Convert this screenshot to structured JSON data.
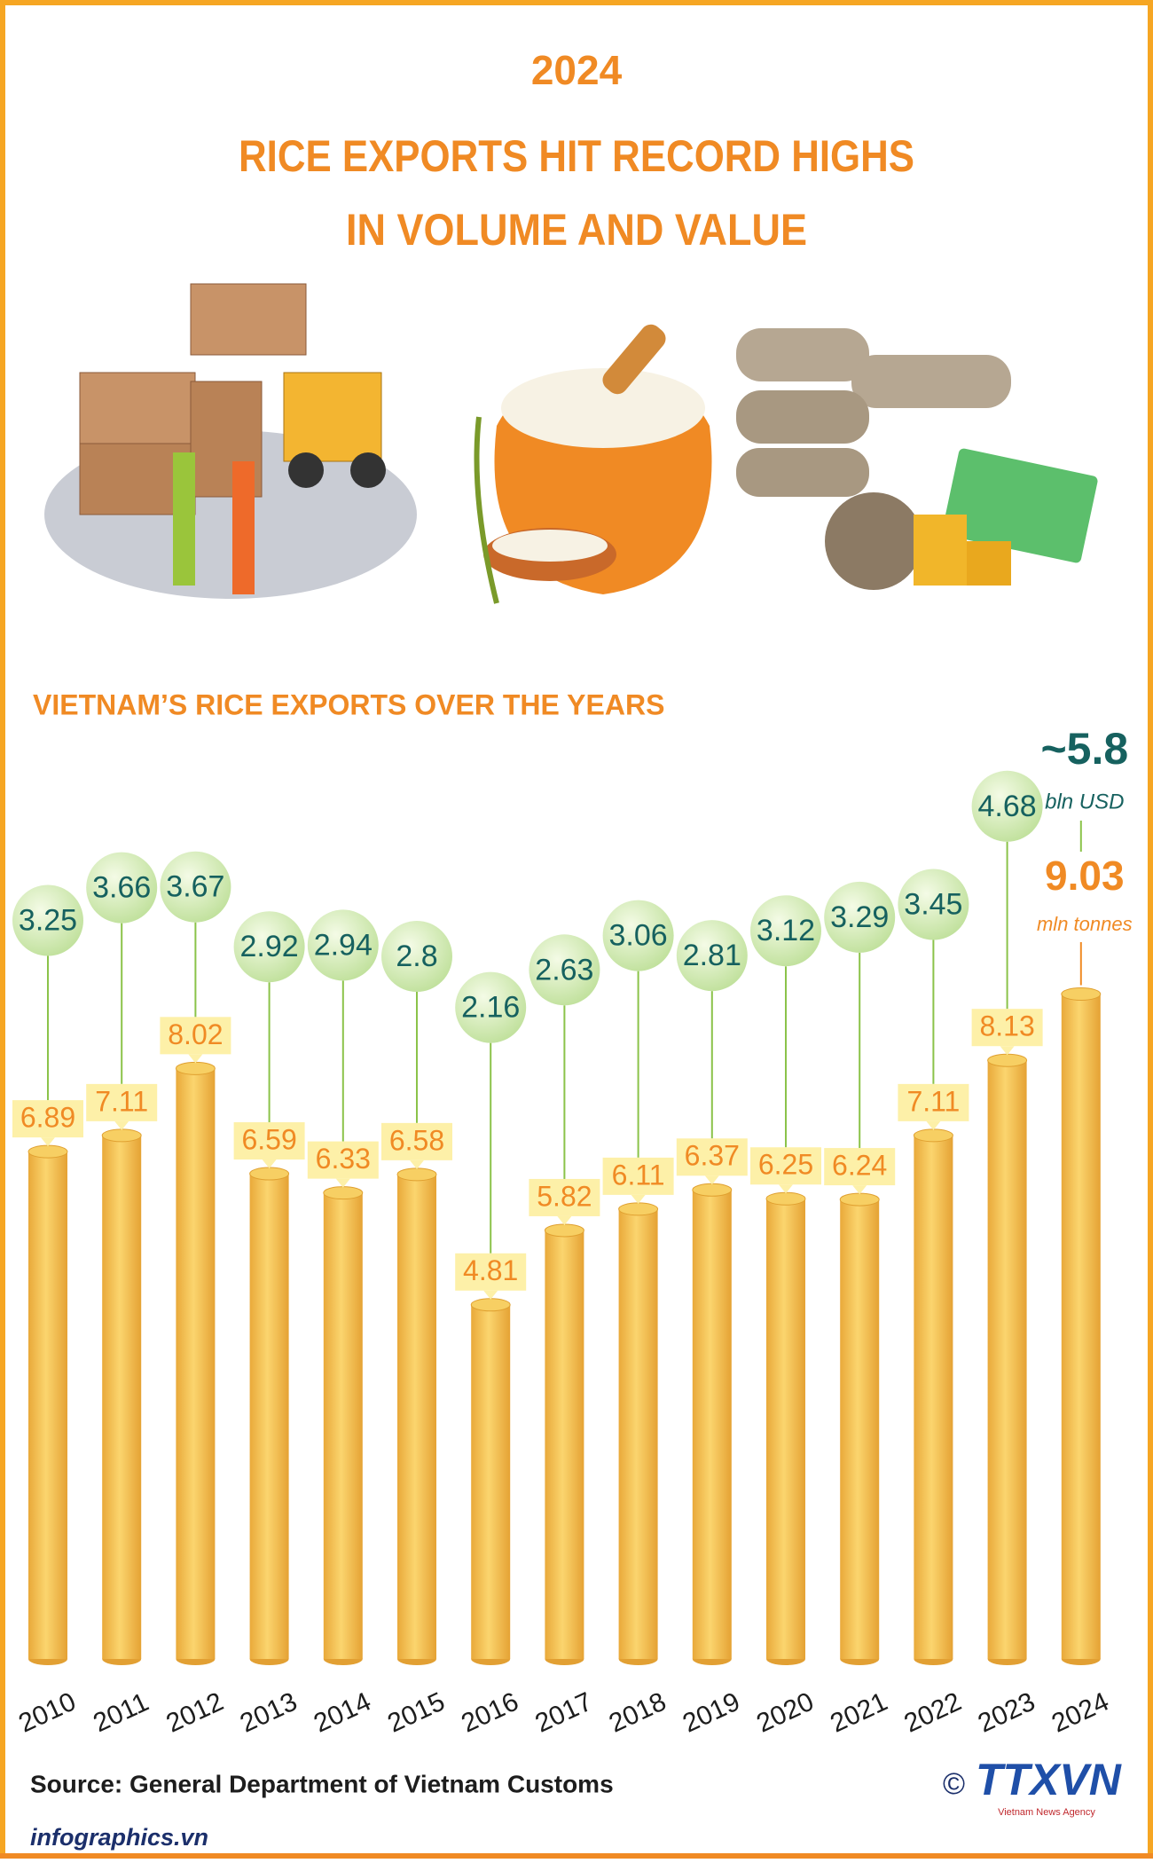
{
  "chart_data": {
    "type": "bar",
    "title": [
      "2024",
      "RICE EXPORTS HIT RECORD HIGHS",
      "IN VOLUME AND VALUE"
    ],
    "subtitle": "VIETNAM’S RICE EXPORTS OVER THE YEARS",
    "categories": [
      "2010",
      "2011",
      "2012",
      "2013",
      "2014",
      "2015",
      "2016",
      "2017",
      "2018",
      "2019",
      "2020",
      "2021",
      "2022",
      "2023",
      "2024"
    ],
    "series": [
      {
        "unit": "mln tonnes",
        "color": "#f08a24",
        "bar_color": "#f5c04a",
        "values": [
          6.89,
          7.11,
          8.02,
          6.59,
          6.33,
          6.58,
          4.81,
          5.82,
          6.11,
          6.37,
          6.25,
          6.24,
          7.11,
          8.13,
          9.03
        ]
      },
      {
        "unit": "bln USD",
        "color": "#16615f",
        "values": [
          3.25,
          3.66,
          3.67,
          2.92,
          2.94,
          2.8,
          2.16,
          2.63,
          3.06,
          2.81,
          3.12,
          3.29,
          3.45,
          4.68,
          5.8
        ],
        "value_labels": [
          "3.25",
          "3.66",
          "3.67",
          "2.92",
          "2.94",
          "2.8",
          "2.16",
          "2.63",
          "3.06",
          "2.81",
          "3.12",
          "3.29",
          "3.45",
          "4.68",
          "~5.8"
        ]
      }
    ],
    "source": "Source: General Department of Vietnam Customs",
    "site": "infographics.vn",
    "copyright": "©",
    "logo": "TTXVN",
    "logo_subtitle": "Vietnam News Agency"
  }
}
